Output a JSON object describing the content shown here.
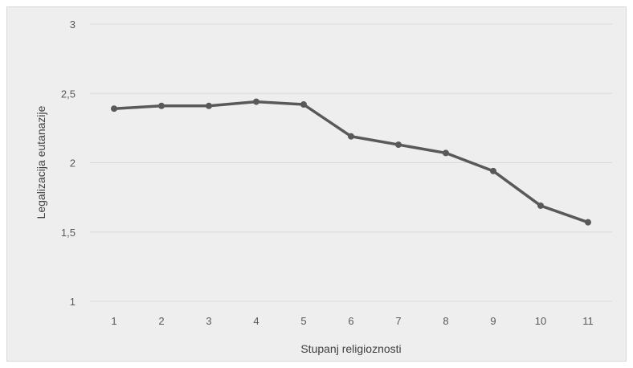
{
  "chart_data": {
    "type": "line",
    "title": "",
    "xlabel": "Stupanj religioznosti",
    "ylabel": "Legalizacija eutanazije",
    "categories": [
      "1",
      "2",
      "3",
      "4",
      "5",
      "6",
      "7",
      "8",
      "9",
      "10",
      "11"
    ],
    "series": [
      {
        "values": [
          2.39,
          2.41,
          2.41,
          2.44,
          2.42,
          2.19,
          2.13,
          2.07,
          1.94,
          1.69,
          1.57
        ]
      }
    ],
    "ylim": [
      1,
      3
    ],
    "yticks": [
      "1",
      "1,5",
      "2",
      "2,5",
      "3"
    ],
    "ytick_values": [
      1,
      1.5,
      2,
      2.5,
      3
    ],
    "grid": true,
    "legend": "none",
    "colors": {
      "line": "#595959",
      "grid": "#d9d9d9",
      "background": "#eeeeee"
    }
  }
}
